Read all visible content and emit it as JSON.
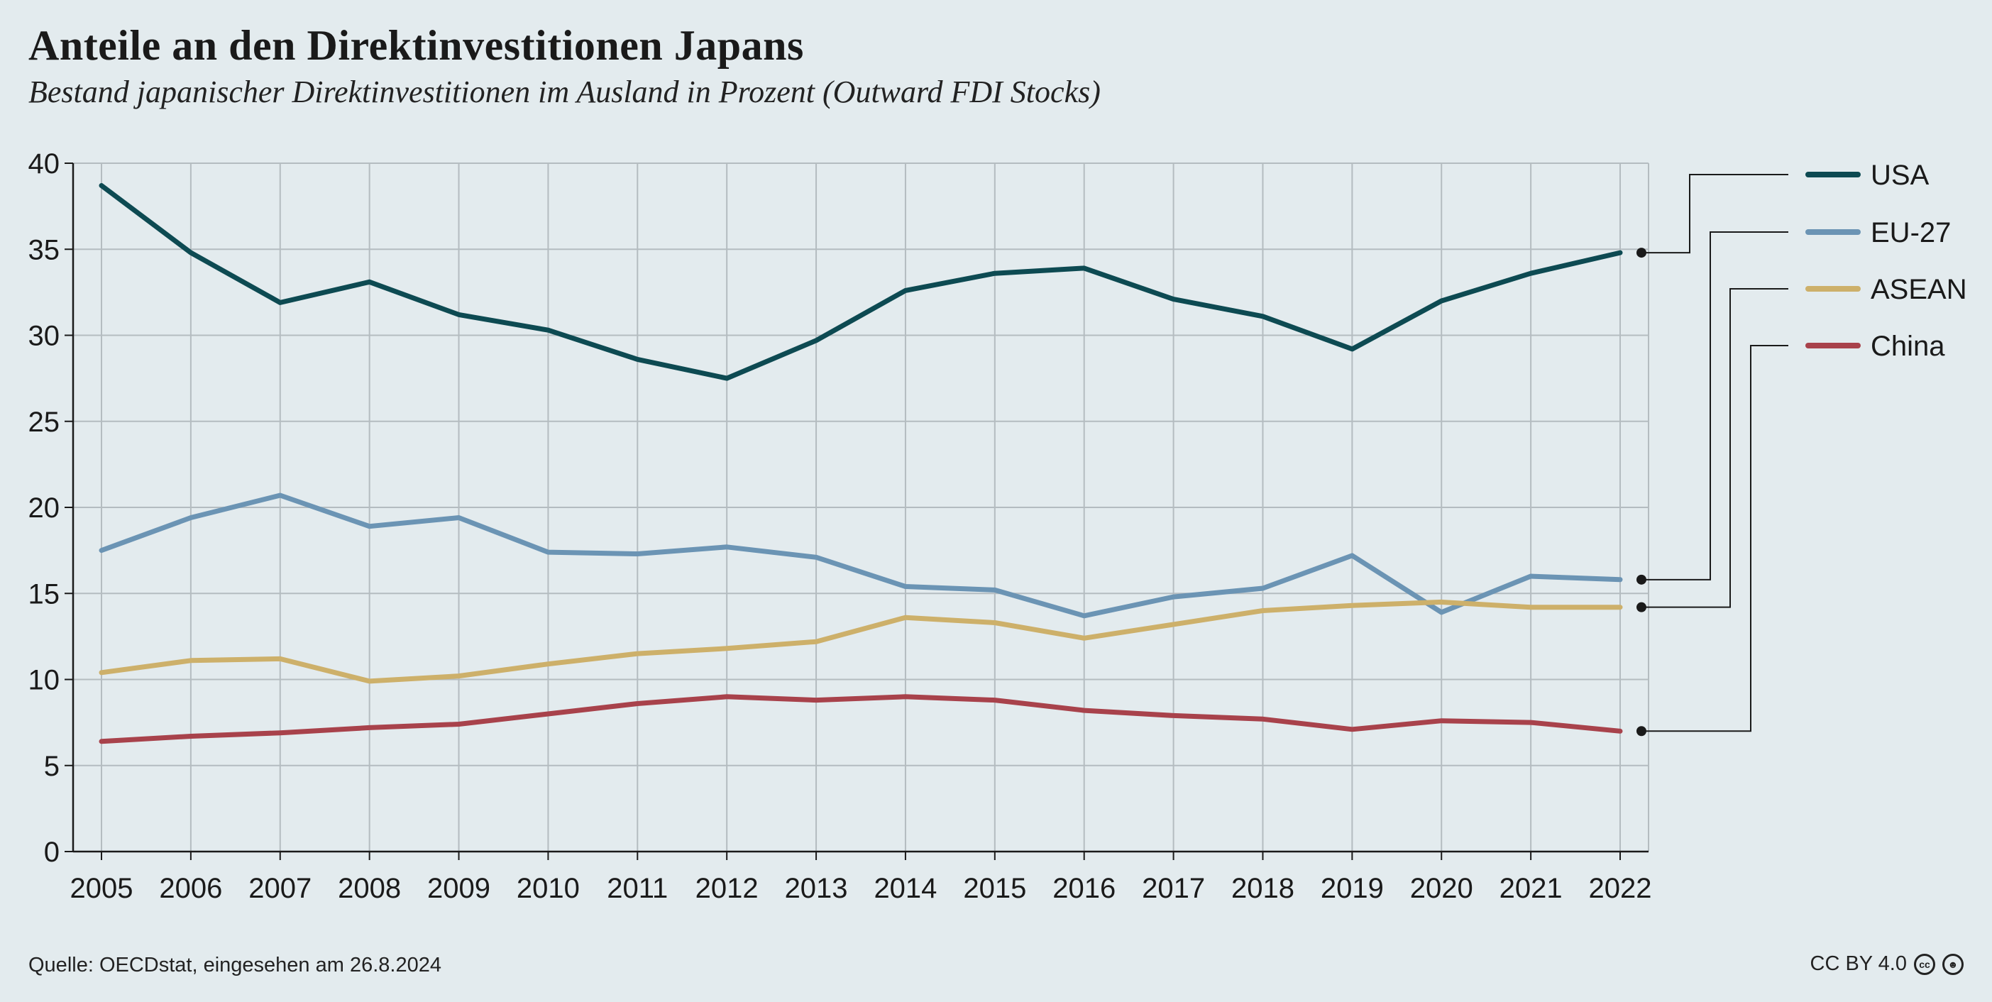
{
  "title": "Anteile an den Direktinvestitionen Japans",
  "subtitle": "Bestand japanischer Direktinvestitionen im Ausland in Prozent (Outward FDI Stocks)",
  "source": "Quelle: OECDstat, eingesehen am 26.8.2024",
  "license": "CC BY 4.0",
  "license_icons": [
    "cc-icon",
    "attribution-icon"
  ],
  "chart_data": {
    "type": "line",
    "title": "Anteile an den Direktinvestitionen Japans",
    "subtitle": "Bestand japanischer Direktinvestitionen im Ausland in Prozent (Outward FDI Stocks)",
    "xlabel": "",
    "ylabel": "",
    "x": [
      2005,
      2006,
      2007,
      2008,
      2009,
      2010,
      2011,
      2012,
      2013,
      2014,
      2015,
      2016,
      2017,
      2018,
      2019,
      2020,
      2021,
      2022
    ],
    "ylim": [
      0,
      40
    ],
    "yticks": [
      0,
      5,
      10,
      15,
      20,
      25,
      30,
      35,
      40
    ],
    "grid": true,
    "legend_position": "right",
    "series": [
      {
        "name": "USA",
        "color": "#0d4a52",
        "values": [
          38.7,
          34.8,
          31.9,
          33.1,
          31.2,
          30.3,
          28.6,
          27.5,
          29.7,
          32.6,
          33.6,
          33.9,
          32.1,
          31.1,
          29.2,
          32.0,
          33.6,
          34.8
        ]
      },
      {
        "name": "EU-27",
        "color": "#6b94b4",
        "values": [
          17.5,
          19.4,
          20.7,
          18.9,
          19.4,
          17.4,
          17.3,
          17.7,
          17.1,
          15.4,
          15.2,
          13.7,
          14.8,
          15.3,
          17.2,
          13.9,
          16.0,
          15.8
        ]
      },
      {
        "name": "ASEAN",
        "color": "#cdb06a",
        "values": [
          10.4,
          11.1,
          11.2,
          9.9,
          10.2,
          10.9,
          11.5,
          11.8,
          12.2,
          13.6,
          13.3,
          12.4,
          13.2,
          14.0,
          14.3,
          14.5,
          14.2,
          14.2
        ]
      },
      {
        "name": "China",
        "color": "#a8424b",
        "values": [
          6.4,
          6.7,
          6.9,
          7.2,
          7.4,
          8.0,
          8.6,
          9.0,
          8.8,
          9.0,
          8.8,
          8.2,
          7.9,
          7.7,
          7.1,
          7.6,
          7.5,
          7.0
        ]
      }
    ]
  }
}
